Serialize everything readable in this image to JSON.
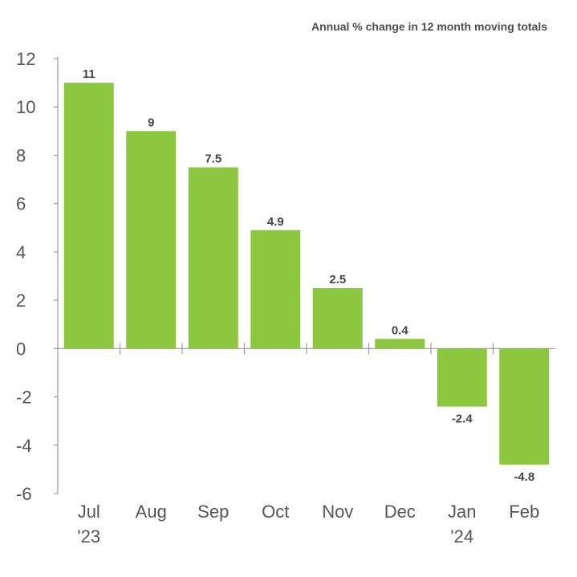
{
  "chart_data": {
    "type": "bar",
    "subtitle": "Annual % change in 12 month moving totals",
    "categories": [
      [
        "Jul",
        "'23"
      ],
      [
        "Aug",
        ""
      ],
      [
        "Sep",
        ""
      ],
      [
        "Oct",
        ""
      ],
      [
        "Nov",
        ""
      ],
      [
        "Dec",
        ""
      ],
      [
        "Jan",
        "'24"
      ],
      [
        "Feb",
        ""
      ]
    ],
    "values": [
      11,
      9,
      7.5,
      4.9,
      2.5,
      0.4,
      -2.4,
      -4.8
    ],
    "value_labels": [
      "11",
      "9",
      "7.5",
      "4.9",
      "2.5",
      "0.4",
      "-2.4",
      "-4.8"
    ],
    "ylim": [
      -6,
      12
    ],
    "yticks": [
      12,
      10,
      8,
      6,
      4,
      2,
      0,
      -2,
      -4,
      -6
    ],
    "bar_color": "#8dc63f",
    "grid": false,
    "legend": "none"
  }
}
